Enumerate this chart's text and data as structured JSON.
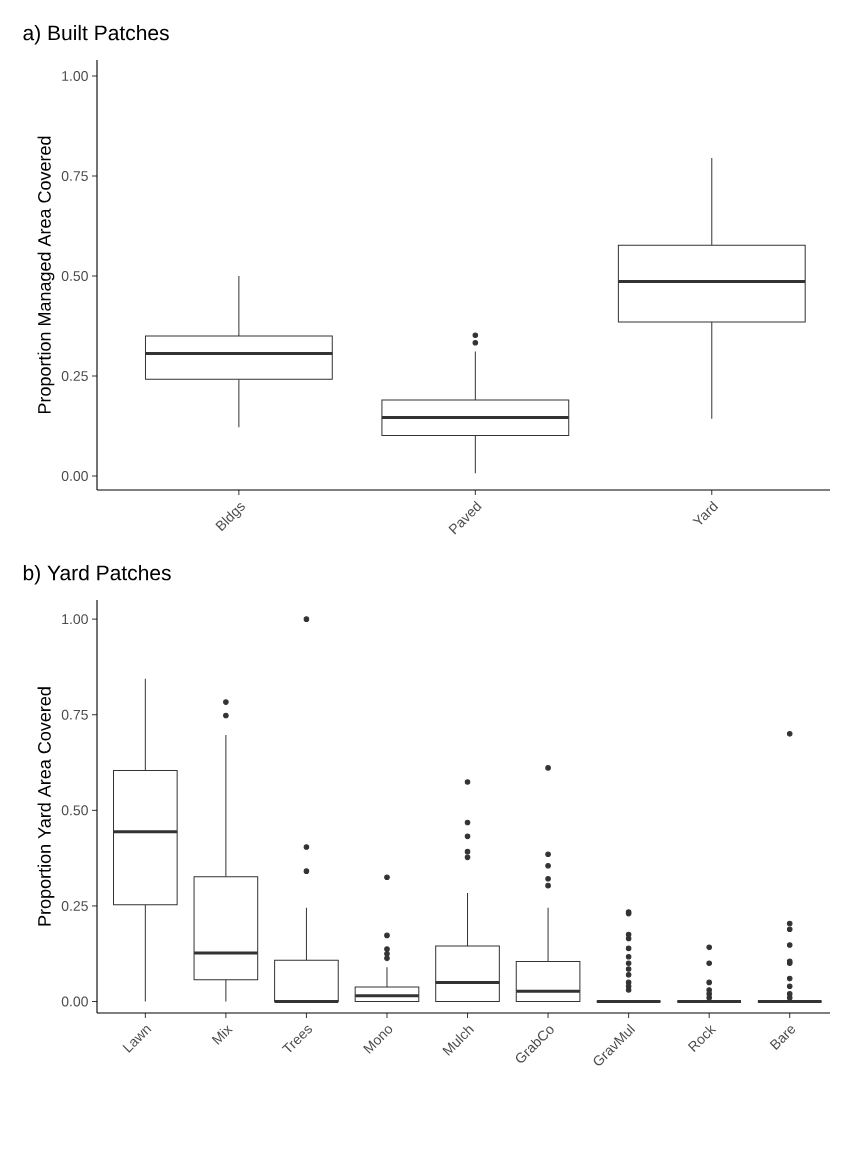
{
  "chart_data": [
    {
      "type": "box",
      "title": "a) Built Patches",
      "ylabel": "Proportion Managed Area Covered",
      "categories": [
        "Bldgs",
        "Paved",
        "Yard"
      ],
      "color": "#333333",
      "ylim": [
        -0.035,
        1.04
      ],
      "yticks": [
        {
          "value": 0,
          "label": "0.00"
        },
        {
          "value": 0.25,
          "label": "0.25"
        },
        {
          "value": 0.5,
          "label": "0.50"
        },
        {
          "value": 0.75,
          "label": "0.75"
        },
        {
          "value": 1,
          "label": "1.00"
        }
      ],
      "boxes": [
        {
          "low": 0.122,
          "q1": 0.242,
          "median": 0.306,
          "q3": 0.35,
          "high": 0.5
        },
        {
          "low": 0.007,
          "q1": 0.101,
          "median": 0.146,
          "q3": 0.19,
          "high": 0.311,
          "outliers": [
            0.352,
            0.333
          ]
        },
        {
          "low": 0.143,
          "q1": 0.385,
          "median": 0.486,
          "q3": 0.577,
          "high": 0.795
        }
      ]
    },
    {
      "type": "box",
      "title": "b) Yard Patches",
      "ylabel": "Proportion Yard Area Covered",
      "categories": [
        "Lawn",
        "Mix",
        "Trees",
        "Mono",
        "Mulch",
        "GrabCo",
        "GravMul",
        "Rock",
        "Bare"
      ],
      "color": "#333333",
      "ylim": [
        -0.03,
        1.05
      ],
      "yticks": [
        {
          "value": 0,
          "label": "0.00"
        },
        {
          "value": 0.25,
          "label": "0.25"
        },
        {
          "value": 0.5,
          "label": "0.50"
        },
        {
          "value": 0.75,
          "label": "0.75"
        },
        {
          "value": 1,
          "label": "1.00"
        }
      ],
      "boxes": [
        {
          "low": 0,
          "q1": 0.253,
          "median": 0.444,
          "q3": 0.604,
          "high": 0.844
        },
        {
          "low": 0,
          "q1": 0.057,
          "median": 0.127,
          "q3": 0.326,
          "high": 0.697,
          "outliers": [
            0.783,
            0.748
          ]
        },
        {
          "low": 0,
          "q1": 0,
          "median": 0,
          "q3": 0.108,
          "high": 0.245,
          "outliers": [
            1.0,
            0.404,
            0.341
          ]
        },
        {
          "low": 0,
          "q1": 0,
          "median": 0.015,
          "q3": 0.038,
          "high": 0.09,
          "outliers": [
            0.325,
            0.173,
            0.137,
            0.125,
            0.113
          ]
        },
        {
          "low": 0,
          "q1": 0,
          "median": 0.05,
          "q3": 0.145,
          "high": 0.284,
          "outliers": [
            0.574,
            0.468,
            0.432,
            0.392,
            0.377
          ]
        },
        {
          "low": 0,
          "q1": 0,
          "median": 0.027,
          "q3": 0.105,
          "high": 0.245,
          "outliers": [
            0.611,
            0.385,
            0.355,
            0.321,
            0.303
          ]
        },
        {
          "low": 0,
          "q1": 0,
          "median": 0,
          "q3": 0,
          "high": 0,
          "outliers": [
            0.234,
            0.23,
            0.175,
            0.165,
            0.139,
            0.117,
            0.1,
            0.085,
            0.07,
            0.05,
            0.04,
            0.03
          ]
        },
        {
          "low": 0,
          "q1": 0,
          "median": 0,
          "q3": 0,
          "high": 0,
          "outliers": [
            0.142,
            0.1,
            0.05,
            0.03,
            0.02,
            0.01
          ]
        },
        {
          "low": 0,
          "q1": 0,
          "median": 0,
          "q3": 0,
          "high": 0,
          "outliers": [
            0.7,
            0.204,
            0.189,
            0.148,
            0.105,
            0.1,
            0.06,
            0.04,
            0.02,
            0.01
          ]
        }
      ]
    }
  ]
}
